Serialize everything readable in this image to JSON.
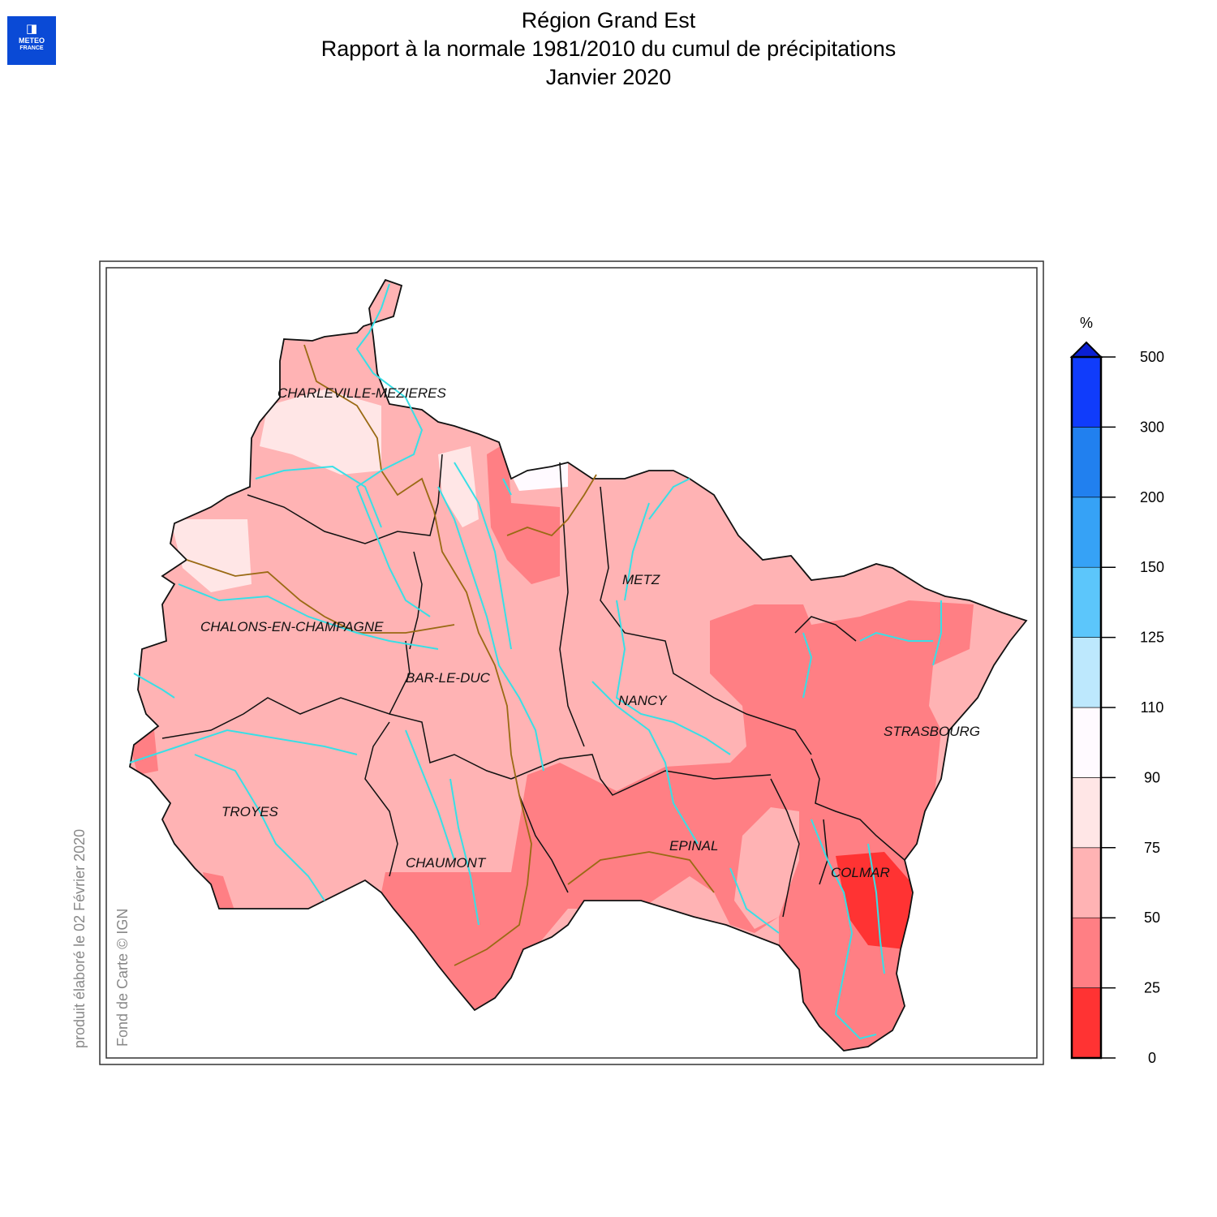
{
  "logo": {
    "line1": "METEO",
    "line2": "FRANCE",
    "icon": "meteo-france-logo-icon"
  },
  "title": {
    "line1": "Région Grand Est",
    "line2": "Rapport à la normale 1981/2010 du cumul de précipitations",
    "line3": "Janvier 2020"
  },
  "notes": {
    "produced": "produit élaboré le 02 Février 2020",
    "basemap": "Fond de Carte © IGN"
  },
  "legend": {
    "unit": "%",
    "ticks": [
      "0",
      "25",
      "50",
      "75",
      "90",
      "110",
      "125",
      "150",
      "200",
      "300",
      "500"
    ],
    "colors": [
      "#ff3333",
      "#ff7f84",
      "#ffb3b4",
      "#ffe6e6",
      "#fffaff",
      "#bde8fd",
      "#5cc6fb",
      "#36a2f6",
      "#2180ef",
      "#103cfb"
    ],
    "arrow_color": "#0a1fd3"
  },
  "map": {
    "cities": [
      "CHARLEVILLE-MEZIERES",
      "METZ",
      "CHALONS-EN-CHAMPAGNE",
      "BAR-LE-DUC",
      "NANCY",
      "STRASBOURG",
      "TROYES",
      "EPINAL",
      "CHAUMONT",
      "COLMAR"
    ]
  }
}
